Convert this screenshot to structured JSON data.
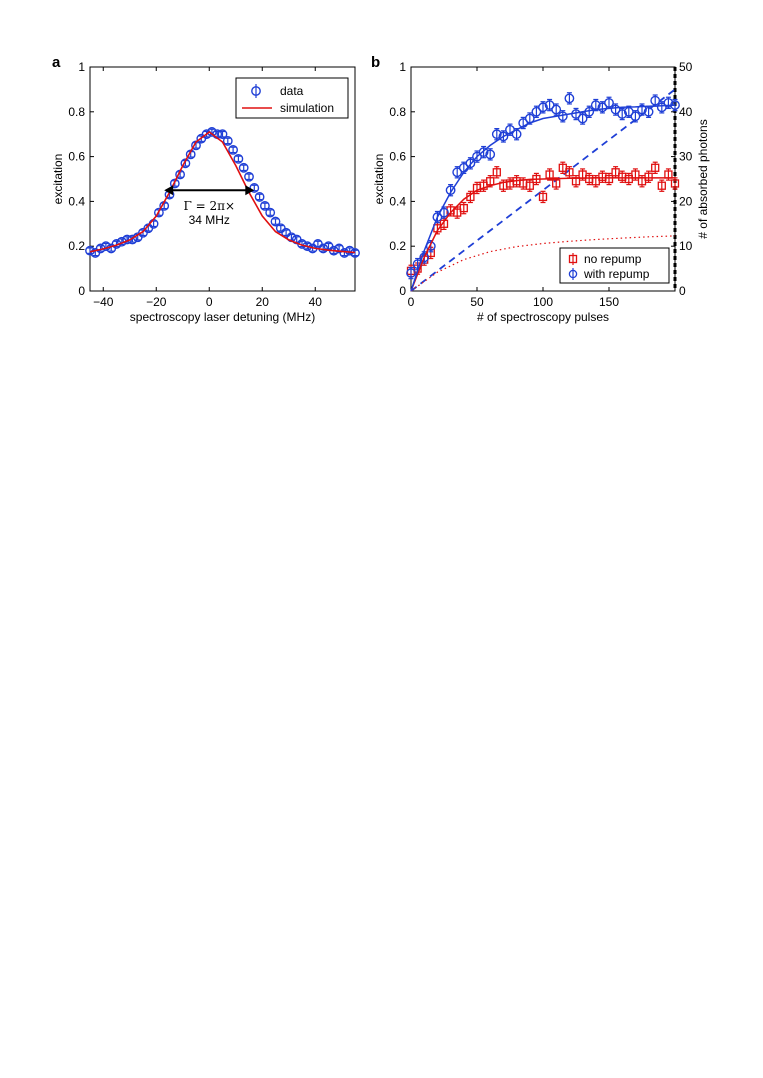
{
  "chart_data": [
    {
      "panel": "a",
      "type": "scatter",
      "xlabel": "spectroscopy laser detuning (MHz)",
      "ylabel": "excitation",
      "xlim": [
        -45,
        55
      ],
      "ylim": [
        0,
        1
      ],
      "xticks": [
        -40,
        -20,
        0,
        20,
        40
      ],
      "yticks": [
        0,
        0.2,
        0.4,
        0.6,
        0.8,
        1
      ],
      "xtick_labels": [
        "−40",
        "−20",
        "0",
        "20",
        "40"
      ],
      "ytick_labels": [
        "0",
        "0.2",
        "0.4",
        "0.6",
        "0.8",
        "1"
      ],
      "legend": {
        "position": "top-right",
        "entries": [
          "data",
          "simulation"
        ]
      },
      "annotation": {
        "line1": "Γ = 2π×",
        "line2": "34 MHz",
        "x_from": -17,
        "x_to": 17,
        "y": 0.45
      },
      "series": [
        {
          "name": "data",
          "style": "markers",
          "marker": "circle",
          "color": "#1f3fd6",
          "x": [
            -45,
            -43,
            -41,
            -39,
            -37,
            -35,
            -33,
            -31,
            -29,
            -27,
            -25,
            -23,
            -21,
            -19,
            -17,
            -15,
            -13,
            -11,
            -9,
            -7,
            -5,
            -3,
            -1,
            1,
            3,
            5,
            7,
            9,
            11,
            13,
            15,
            17,
            19,
            21,
            23,
            25,
            27,
            29,
            31,
            33,
            35,
            37,
            39,
            41,
            43,
            45,
            47,
            49,
            51,
            53,
            55
          ],
          "y": [
            0.18,
            0.17,
            0.19,
            0.2,
            0.19,
            0.21,
            0.22,
            0.23,
            0.23,
            0.24,
            0.26,
            0.28,
            0.3,
            0.35,
            0.38,
            0.43,
            0.48,
            0.52,
            0.57,
            0.61,
            0.65,
            0.68,
            0.7,
            0.71,
            0.7,
            0.7,
            0.67,
            0.63,
            0.59,
            0.55,
            0.51,
            0.46,
            0.42,
            0.38,
            0.35,
            0.31,
            0.28,
            0.26,
            0.24,
            0.23,
            0.21,
            0.2,
            0.19,
            0.21,
            0.19,
            0.2,
            0.18,
            0.19,
            0.17,
            0.18,
            0.17
          ],
          "yerr": 0.012
        },
        {
          "name": "simulation",
          "style": "line",
          "color": "#e01010",
          "x": [
            -45,
            -40,
            -35,
            -30,
            -25,
            -20,
            -15,
            -10,
            -5,
            0,
            5,
            10,
            15,
            20,
            25,
            30,
            35,
            40,
            45,
            50,
            55
          ],
          "y": [
            0.175,
            0.188,
            0.205,
            0.228,
            0.265,
            0.335,
            0.44,
            0.56,
            0.665,
            0.71,
            0.665,
            0.56,
            0.44,
            0.335,
            0.265,
            0.228,
            0.205,
            0.19,
            0.182,
            0.177,
            0.172
          ]
        }
      ]
    },
    {
      "panel": "b",
      "type": "scatter",
      "xlabel": "# of spectroscopy pulses",
      "ylabel": "excitation",
      "y2label": "# of absorbed photons",
      "xlim": [
        0,
        200
      ],
      "ylim": [
        0,
        1
      ],
      "y2lim": [
        0,
        50
      ],
      "xticks": [
        0,
        50,
        100,
        150
      ],
      "yticks": [
        0,
        0.2,
        0.4,
        0.6,
        0.8,
        1
      ],
      "y2ticks": [
        0,
        10,
        20,
        30,
        40,
        50
      ],
      "xtick_labels": [
        "0",
        "50",
        "100",
        "150"
      ],
      "ytick_labels": [
        "0",
        "0.2",
        "0.4",
        "0.6",
        "0.8",
        "1"
      ],
      "y2tick_labels": [
        "0",
        "10",
        "20",
        "30",
        "40",
        "50"
      ],
      "legend": {
        "position": "bottom-right",
        "entries": [
          "no repump",
          "with repump"
        ]
      },
      "series": [
        {
          "name": "with repump",
          "style": "markers",
          "marker": "circle",
          "color": "#1f3fd6",
          "x": [
            0,
            5,
            10,
            15,
            20,
            25,
            30,
            35,
            40,
            45,
            50,
            55,
            60,
            65,
            70,
            75,
            80,
            85,
            90,
            95,
            100,
            105,
            110,
            115,
            120,
            125,
            130,
            135,
            140,
            145,
            150,
            155,
            160,
            165,
            170,
            175,
            180,
            185,
            190,
            195,
            200
          ],
          "y": [
            0.08,
            0.12,
            0.15,
            0.2,
            0.33,
            0.35,
            0.45,
            0.53,
            0.55,
            0.57,
            0.6,
            0.62,
            0.61,
            0.7,
            0.69,
            0.72,
            0.7,
            0.75,
            0.77,
            0.8,
            0.82,
            0.83,
            0.81,
            0.78,
            0.86,
            0.79,
            0.77,
            0.8,
            0.83,
            0.82,
            0.84,
            0.81,
            0.79,
            0.8,
            0.78,
            0.81,
            0.8,
            0.85,
            0.82,
            0.84,
            0.83
          ],
          "yerr": 0.025
        },
        {
          "name": "no repump",
          "style": "markers",
          "marker": "square",
          "color": "#e01010",
          "x": [
            0,
            5,
            10,
            15,
            20,
            25,
            30,
            35,
            40,
            45,
            50,
            55,
            60,
            65,
            70,
            75,
            80,
            85,
            90,
            95,
            100,
            105,
            110,
            115,
            120,
            125,
            130,
            135,
            140,
            145,
            150,
            155,
            160,
            165,
            170,
            175,
            180,
            185,
            190,
            195,
            200
          ],
          "y": [
            0.09,
            0.1,
            0.14,
            0.17,
            0.28,
            0.3,
            0.36,
            0.35,
            0.37,
            0.42,
            0.46,
            0.47,
            0.49,
            0.53,
            0.47,
            0.48,
            0.49,
            0.48,
            0.47,
            0.5,
            0.42,
            0.52,
            0.48,
            0.55,
            0.53,
            0.49,
            0.52,
            0.5,
            0.49,
            0.51,
            0.5,
            0.53,
            0.51,
            0.5,
            0.52,
            0.49,
            0.51,
            0.55,
            0.47,
            0.52,
            0.48
          ],
          "yerr": 0.025
        },
        {
          "name": "with repump fit",
          "style": "line",
          "color": "#1f3fd6",
          "x": [
            0,
            10,
            20,
            30,
            40,
            50,
            60,
            70,
            80,
            90,
            100,
            110,
            120,
            130,
            140,
            150,
            160,
            170,
            180,
            190,
            200
          ],
          "y": [
            0.0,
            0.18,
            0.33,
            0.44,
            0.53,
            0.6,
            0.65,
            0.69,
            0.72,
            0.75,
            0.77,
            0.78,
            0.79,
            0.8,
            0.81,
            0.815,
            0.82,
            0.822,
            0.825,
            0.827,
            0.83
          ]
        },
        {
          "name": "no repump fit",
          "style": "line",
          "color": "#e01010",
          "x": [
            0,
            10,
            20,
            30,
            40,
            50,
            60,
            70,
            80,
            90,
            100,
            110,
            120,
            130,
            140,
            150,
            160,
            170,
            180,
            190,
            200
          ],
          "y": [
            0.0,
            0.15,
            0.27,
            0.35,
            0.41,
            0.45,
            0.47,
            0.485,
            0.493,
            0.498,
            0.5,
            0.502,
            0.503,
            0.504,
            0.505,
            0.505,
            0.505,
            0.505,
            0.505,
            0.505,
            0.505
          ]
        },
        {
          "name": "with repump photons",
          "style": "dashed",
          "color": "#1f3fd6",
          "axis": "y2",
          "x": [
            0,
            200
          ],
          "y": [
            0,
            45
          ]
        },
        {
          "name": "no repump photons",
          "style": "dotted",
          "color": "#e01010",
          "axis": "y2",
          "x": [
            0,
            20,
            40,
            60,
            80,
            100,
            120,
            140,
            160,
            180,
            200
          ],
          "y": [
            0,
            4.2,
            7.0,
            8.8,
            9.9,
            10.6,
            11.1,
            11.5,
            11.8,
            12.1,
            12.3
          ]
        }
      ]
    }
  ],
  "panel_labels": [
    "a",
    "b"
  ]
}
